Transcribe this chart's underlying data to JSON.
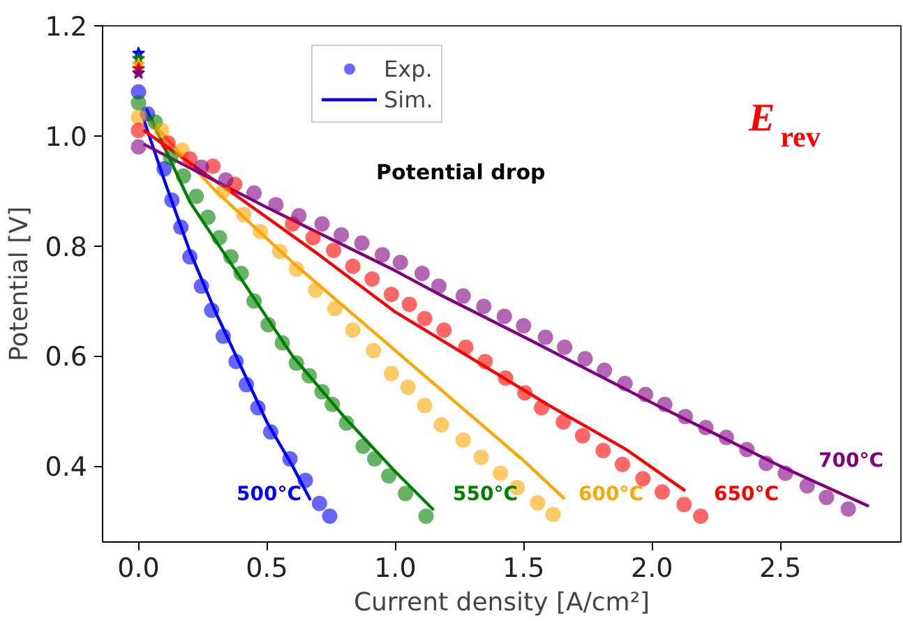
{
  "chart_data": {
    "type": "scatter",
    "xlabel": "Current density [A/cm²]",
    "ylabel": "Potential [V]",
    "xlim": [
      -0.14,
      2.97
    ],
    "ylim": [
      0.262,
      1.2
    ],
    "xticks": [
      {
        "value": 0,
        "label": "0.0"
      },
      0.5,
      {
        "value": 1,
        "label": "1.0"
      },
      1.5,
      {
        "value": 2,
        "label": "2.0"
      },
      2.5
    ],
    "yticks": [
      0.4,
      0.6,
      0.8,
      {
        "value": 1,
        "label": "1.0"
      },
      1.2
    ],
    "grid": false,
    "legend": "top",
    "marker": "circle",
    "series": [
      {
        "name": "Exp.",
        "color": "#0000ff",
        "x": [
          0,
          0.035,
          0.1,
          0.13,
          0.165,
          0.2,
          0.245,
          0.285,
          0.33,
          0.38,
          0.42,
          0.465,
          0.515,
          0.59,
          0.65,
          0.705,
          0.745
        ],
        "values": [
          1.08,
          1.04,
          0.94,
          0.883,
          0.834,
          0.78,
          0.727,
          0.683,
          0.636,
          0.59,
          0.548,
          0.506,
          0.462,
          0.413,
          0.374,
          0.332,
          0.309
        ]
      },
      {
        "name": "Sim.",
        "type": "line",
        "marker": "none",
        "color": "#0000ff",
        "x": [
          0.02,
          0.1,
          0.2,
          0.3,
          0.4,
          0.5,
          0.6,
          0.67
        ],
        "values": [
          1.03,
          0.92,
          0.79,
          0.68,
          0.58,
          0.48,
          0.4,
          0.338
        ]
      },
      {
        "color": "#008000",
        "x": [
          0,
          0.065,
          0.125,
          0.175,
          0.225,
          0.27,
          0.315,
          0.36,
          0.4,
          0.45,
          0.505,
          0.56,
          0.615,
          0.665,
          0.715,
          0.755,
          0.81,
          0.875,
          0.92,
          0.975,
          1.04,
          1.12
        ],
        "values": [
          1.06,
          1.025,
          0.96,
          0.927,
          0.89,
          0.852,
          0.815,
          0.78,
          0.75,
          0.7,
          0.657,
          0.624,
          0.587,
          0.564,
          0.535,
          0.512,
          0.478,
          0.436,
          0.413,
          0.382,
          0.35,
          0.309
        ]
      },
      {
        "type": "line",
        "marker": "none",
        "color": "#008000",
        "x": [
          0.03,
          0.2,
          0.4,
          0.6,
          0.8,
          1.0,
          1.15
        ],
        "values": [
          1.05,
          0.88,
          0.74,
          0.6,
          0.49,
          0.39,
          0.32
        ]
      },
      {
        "color": "#ffa500",
        "x": [
          0,
          0.09,
          0.17,
          0.33,
          0.41,
          0.475,
          0.55,
          0.615,
          0.69,
          0.765,
          0.835,
          0.915,
          0.985,
          1.05,
          1.115,
          1.18,
          1.265,
          1.335,
          1.41,
          1.475,
          1.555,
          1.615
        ],
        "values": [
          1.034,
          1.01,
          0.974,
          0.9,
          0.857,
          0.826,
          0.79,
          0.758,
          0.72,
          0.686,
          0.647,
          0.61,
          0.568,
          0.543,
          0.51,
          0.475,
          0.447,
          0.416,
          0.387,
          0.361,
          0.333,
          0.312
        ]
      },
      {
        "type": "line",
        "marker": "none",
        "color": "#ffa500",
        "x": [
          0.02,
          0.3,
          0.6,
          0.9,
          1.2,
          1.5,
          1.66
        ],
        "values": [
          1.04,
          0.9,
          0.77,
          0.65,
          0.53,
          0.41,
          0.34
        ]
      },
      {
        "color": "#ff0000",
        "x": [
          0,
          0.115,
          0.2,
          0.29,
          0.375,
          0.6,
          0.68,
          0.76,
          0.835,
          0.91,
          0.985,
          1.055,
          1.115,
          1.19,
          1.275,
          1.35,
          1.43,
          1.505,
          1.57,
          1.655,
          1.73,
          1.81,
          1.885,
          1.965,
          2.04,
          2.125,
          2.19
        ],
        "values": [
          1.01,
          0.987,
          0.958,
          0.945,
          0.912,
          0.84,
          0.815,
          0.792,
          0.763,
          0.74,
          0.712,
          0.694,
          0.668,
          0.647,
          0.616,
          0.59,
          0.56,
          0.533,
          0.506,
          0.48,
          0.455,
          0.428,
          0.403,
          0.377,
          0.353,
          0.33,
          0.309
        ]
      },
      {
        "type": "line",
        "marker": "none",
        "color": "#ff0000",
        "x": [
          0.02,
          0.4,
          0.7,
          1.0,
          1.3,
          1.6,
          1.9,
          2.13
        ],
        "values": [
          1.01,
          0.885,
          0.785,
          0.68,
          0.595,
          0.51,
          0.43,
          0.355
        ]
      },
      {
        "color": "#800080",
        "x": [
          0,
          0.245,
          0.34,
          0.45,
          0.535,
          0.625,
          0.715,
          0.79,
          0.87,
          0.95,
          1.02,
          1.105,
          1.17,
          1.265,
          1.345,
          1.425,
          1.5,
          1.585,
          1.66,
          1.74,
          1.815,
          1.895,
          1.975,
          2.05,
          2.13,
          2.21,
          2.29,
          2.37,
          2.445,
          2.52,
          2.605,
          2.68,
          2.765
        ],
        "values": [
          0.98,
          0.943,
          0.92,
          0.896,
          0.875,
          0.855,
          0.84,
          0.82,
          0.805,
          0.784,
          0.77,
          0.75,
          0.727,
          0.709,
          0.69,
          0.672,
          0.655,
          0.634,
          0.616,
          0.595,
          0.574,
          0.55,
          0.53,
          0.512,
          0.49,
          0.47,
          0.452,
          0.43,
          0.405,
          0.387,
          0.364,
          0.343,
          0.322
        ]
      },
      {
        "type": "line",
        "marker": "none",
        "color": "#800080",
        "x": [
          0.02,
          0.5,
          1.0,
          1.18,
          1.5,
          2.0,
          2.5,
          2.845
        ],
        "values": [
          0.985,
          0.87,
          0.755,
          0.71,
          0.635,
          0.515,
          0.4,
          0.327
        ]
      },
      {
        "marker": "star",
        "x": [
          0,
          0,
          0,
          0,
          0
        ],
        "values": [
          1.15,
          1.14,
          1.13,
          1.122,
          1.114
        ],
        "colors": [
          "#0000ff",
          "#008000",
          "#ffa500",
          "#ff0000",
          "#800080"
        ]
      }
    ],
    "annotations": [
      "500°C",
      "550°C",
      "600°C",
      "650°C",
      "700°C",
      "Potential drop",
      "E$_{rev}$"
    ]
  }
}
